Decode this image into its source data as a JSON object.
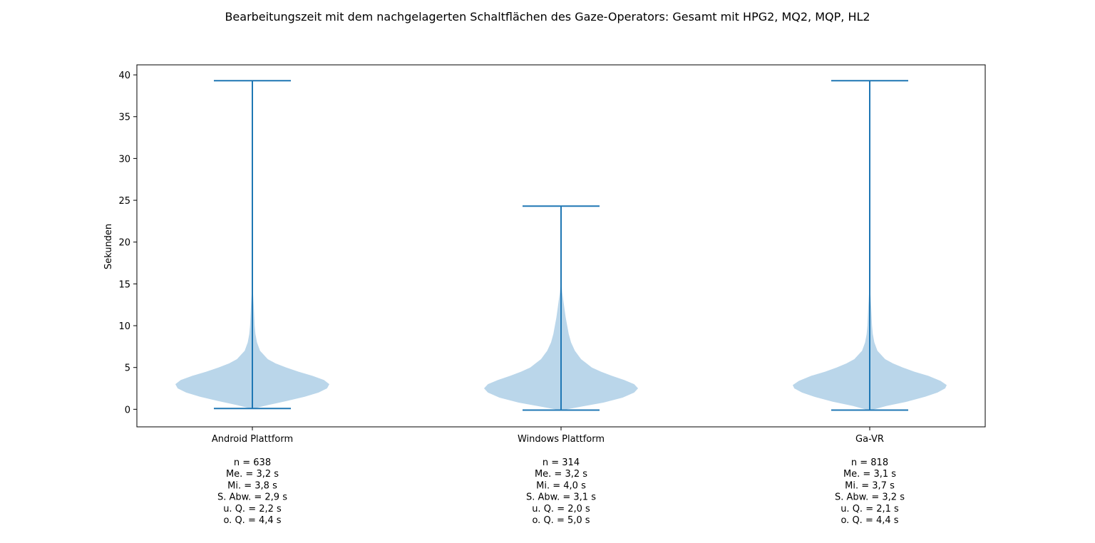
{
  "chart_data": {
    "type": "violin",
    "title": "Bearbeitungszeit mit dem nachgelagerten Schaltflächen des Gaze-Operators: Gesamt mit HPG2, MQ2, MQP, HL2",
    "xlabel": "",
    "ylabel": "Sekunden",
    "ylim": [
      -2.1,
      41.2
    ],
    "yticks": [
      0,
      5,
      10,
      15,
      20,
      25,
      30,
      35,
      40
    ],
    "grid": false,
    "colors": {
      "body": "#bad6ea",
      "lines": "#1f77b4"
    },
    "categories": [
      "Android Plattform",
      "Windows Plattform",
      "Ga-VR"
    ],
    "series": [
      {
        "min": 0.1,
        "max": 39.3,
        "stats": [
          "n = 638",
          "Me. = 3,2 s",
          "Mi. = 3,8 s",
          "S. Abw. = 2,9 s",
          "u. Q. = 2,2 s",
          "o. Q. = 4,4 s"
        ],
        "density_profile": [
          [
            0.1,
            0.02
          ],
          [
            0.5,
            0.2
          ],
          [
            1.0,
            0.45
          ],
          [
            1.5,
            0.68
          ],
          [
            2.0,
            0.86
          ],
          [
            2.5,
            0.97
          ],
          [
            3.0,
            1.0
          ],
          [
            3.5,
            0.93
          ],
          [
            4.0,
            0.78
          ],
          [
            4.5,
            0.6
          ],
          [
            5.0,
            0.44
          ],
          [
            5.5,
            0.3
          ],
          [
            6.0,
            0.2
          ],
          [
            7.0,
            0.1
          ],
          [
            8.0,
            0.06
          ],
          [
            9.0,
            0.04
          ],
          [
            10.0,
            0.03
          ],
          [
            12.0,
            0.02
          ],
          [
            14.0,
            0.008
          ],
          [
            16.0,
            0.003
          ],
          [
            20.0,
            0.001
          ],
          [
            39.3,
            0.0
          ]
        ]
      },
      {
        "min": -0.1,
        "max": 24.3,
        "stats": [
          "n = 314",
          "Me. = 3,2 s",
          "Mi. = 4,0 s",
          "S. Abw. = 3,1 s",
          "u. Q. = 2,0 s",
          "o. Q. = 5,0 s"
        ],
        "density_profile": [
          [
            -0.1,
            0.02
          ],
          [
            0.3,
            0.25
          ],
          [
            0.8,
            0.55
          ],
          [
            1.4,
            0.8
          ],
          [
            2.0,
            0.95
          ],
          [
            2.5,
            1.0
          ],
          [
            3.0,
            0.95
          ],
          [
            3.5,
            0.82
          ],
          [
            4.0,
            0.66
          ],
          [
            4.5,
            0.52
          ],
          [
            5.0,
            0.4
          ],
          [
            6.0,
            0.26
          ],
          [
            7.0,
            0.18
          ],
          [
            8.0,
            0.13
          ],
          [
            9.0,
            0.1
          ],
          [
            10.0,
            0.08
          ],
          [
            11.0,
            0.06
          ],
          [
            12.0,
            0.045
          ],
          [
            13.0,
            0.03
          ],
          [
            14.0,
            0.015
          ],
          [
            15.0,
            0.007
          ],
          [
            16.0,
            0.003
          ],
          [
            18.0,
            0.001
          ],
          [
            24.3,
            0.0
          ]
        ]
      },
      {
        "min": -0.1,
        "max": 39.3,
        "stats": [
          "n = 818",
          "Me. = 3,1 s",
          "Mi. = 3,7 s",
          "S. Abw. = 3,2 s",
          "u. Q. = 2,1 s",
          "o. Q. = 4,4 s"
        ],
        "density_profile": [
          [
            -0.1,
            0.02
          ],
          [
            0.4,
            0.22
          ],
          [
            0.9,
            0.48
          ],
          [
            1.5,
            0.72
          ],
          [
            2.0,
            0.88
          ],
          [
            2.5,
            0.98
          ],
          [
            2.9,
            1.0
          ],
          [
            3.4,
            0.92
          ],
          [
            4.0,
            0.76
          ],
          [
            4.5,
            0.58
          ],
          [
            5.0,
            0.43
          ],
          [
            5.5,
            0.3
          ],
          [
            6.0,
            0.2
          ],
          [
            7.0,
            0.1
          ],
          [
            8.0,
            0.06
          ],
          [
            9.0,
            0.04
          ],
          [
            10.0,
            0.03
          ],
          [
            12.0,
            0.02
          ],
          [
            14.0,
            0.008
          ],
          [
            16.0,
            0.003
          ],
          [
            20.0,
            0.001
          ],
          [
            39.3,
            0.0
          ]
        ]
      }
    ]
  }
}
